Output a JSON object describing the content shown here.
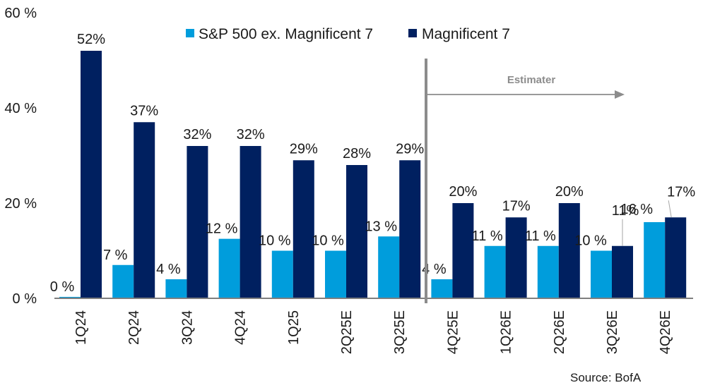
{
  "chart_data": {
    "type": "bar",
    "title": "",
    "xlabel": "",
    "ylabel": "",
    "ylim": [
      0,
      60
    ],
    "yticks": [
      0,
      20,
      40,
      60
    ],
    "ytick_labels": [
      "0 %",
      "20 %",
      "40 %",
      "60 %"
    ],
    "grid": false,
    "legend_position": "top",
    "categories": [
      "1Q24",
      "2Q24",
      "3Q24",
      "4Q24",
      "1Q25",
      "2Q25E",
      "3Q25E",
      "4Q25E",
      "1Q26E",
      "2Q26E",
      "3Q26E",
      "4Q26E"
    ],
    "series": [
      {
        "name": "S&P 500 ex. Magnificent 7",
        "color": "#009ddc",
        "values": [
          0.3,
          7,
          4,
          12.5,
          10,
          10,
          13,
          4,
          11,
          11,
          10,
          16
        ],
        "labels": [
          "0 %",
          "7 %",
          "4 %",
          "12 %",
          "10 %",
          "10 %",
          "13 %",
          "4 %",
          "11 %",
          "11 %",
          "10 %",
          "16 %"
        ]
      },
      {
        "name": "Magnificent 7",
        "color": "#002060",
        "values": [
          52,
          37,
          32,
          32,
          29,
          28,
          29,
          20,
          17,
          20,
          11,
          17
        ],
        "labels": [
          "52%",
          "37%",
          "32%",
          "32%",
          "29%",
          "28%",
          "29%",
          "20%",
          "17%",
          "20%",
          "11%",
          "17%"
        ]
      }
    ],
    "annotations": {
      "estimate_label": "Estimater",
      "estimate_start_category": "4Q25E",
      "source": "Source: BofA"
    }
  }
}
